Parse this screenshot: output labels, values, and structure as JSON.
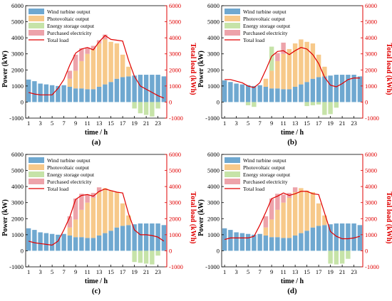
{
  "legend_labels": {
    "wind": "Wind turbine output",
    "pv": "Photovoltaic output",
    "storage": "Energy storage output",
    "purchased": "Purchased electricity",
    "load": "Total load"
  },
  "colors": {
    "wind": "#6fa8d0",
    "pv": "#f7c98a",
    "storage": "#c6e3a8",
    "purchased": "#eda3aa",
    "load": "#e00000",
    "axis_right": "#e00000",
    "axis_left": "#000000"
  },
  "chart_data": [
    {
      "type": "bar",
      "panel": "(a)",
      "xlabel": "time / h",
      "ylabel_left": "Power (kW)",
      "ylabel_right": "Total load (kWh)",
      "ylim_left": [
        -1000,
        6000
      ],
      "ylim_right": [
        -1000,
        6000
      ],
      "x_ticks": [
        1,
        3,
        5,
        7,
        9,
        11,
        13,
        15,
        17,
        19,
        21,
        23
      ],
      "left_ticks": [
        -1000,
        0,
        1000,
        2000,
        3000,
        4000,
        5000,
        6000
      ],
      "right_ticks": [
        -1000,
        0,
        1000,
        2000,
        3000,
        4000,
        5000,
        6000
      ],
      "x": [
        1,
        2,
        3,
        4,
        5,
        6,
        7,
        8,
        9,
        10,
        11,
        12,
        13,
        14,
        15,
        16,
        17,
        18,
        19,
        20,
        21,
        22,
        23,
        24
      ],
      "series": [
        {
          "name": "Wind turbine output",
          "values": [
            1400,
            1300,
            1150,
            1100,
            1050,
            1000,
            1050,
            950,
            850,
            850,
            800,
            800,
            950,
            1100,
            1250,
            1450,
            1550,
            1600,
            1650,
            1700,
            1700,
            1700,
            1700,
            1600
          ]
        },
        {
          "name": "Photovoltaic output",
          "values": [
            0,
            0,
            0,
            0,
            0,
            0,
            0,
            500,
            1100,
            1700,
            2200,
            2500,
            2700,
            2800,
            2500,
            2200,
            1400,
            600,
            0,
            0,
            0,
            0,
            0,
            0
          ]
        },
        {
          "name": "Energy storage output",
          "values": [
            0,
            0,
            0,
            0,
            0,
            0,
            0,
            0,
            0,
            0,
            0,
            0,
            0,
            0,
            0,
            0,
            0,
            0,
            -400,
            -700,
            -800,
            -900,
            -400,
            0
          ]
        },
        {
          "name": "Purchased electricity",
          "values": [
            0,
            0,
            0,
            0,
            0,
            0,
            0,
            500,
            1000,
            800,
            400,
            200,
            200,
            300,
            0,
            0,
            0,
            0,
            0,
            0,
            0,
            0,
            0,
            0
          ]
        },
        {
          "name": "Total load",
          "values": [
            600,
            500,
            450,
            450,
            450,
            850,
            1400,
            2300,
            3050,
            3300,
            3400,
            3250,
            3750,
            4150,
            3900,
            3850,
            3800,
            2600,
            1600,
            1000,
            800,
            600,
            400,
            250
          ]
        }
      ]
    },
    {
      "type": "bar",
      "panel": "(b)",
      "xlabel": "time / h",
      "ylabel_left": "Power (kW)",
      "ylabel_right": "Total load (kWh)",
      "ylim_left": [
        -1000,
        6000
      ],
      "ylim_right": [
        -1000,
        6000
      ],
      "x_ticks": [
        1,
        3,
        5,
        7,
        9,
        11,
        13,
        15,
        17,
        19,
        21,
        23
      ],
      "left_ticks": [
        -1000,
        0,
        1000,
        2000,
        3000,
        4000,
        5000,
        6000
      ],
      "right_ticks": [
        -1000,
        0,
        1000,
        2000,
        3000,
        4000,
        5000,
        6000
      ],
      "x": [
        1,
        2,
        3,
        4,
        5,
        6,
        7,
        8,
        9,
        10,
        11,
        12,
        13,
        14,
        15,
        16,
        17,
        18,
        19,
        20,
        21,
        22,
        23,
        24
      ],
      "series": [
        {
          "name": "Wind turbine output",
          "values": [
            1350,
            1250,
            1150,
            1100,
            1050,
            1000,
            1050,
            950,
            850,
            850,
            800,
            800,
            950,
            1100,
            1250,
            1450,
            1550,
            1600,
            1650,
            1700,
            1700,
            1700,
            1700,
            1600
          ]
        },
        {
          "name": "Photovoltaic output",
          "values": [
            0,
            0,
            0,
            0,
            0,
            0,
            0,
            500,
            1100,
            1700,
            2200,
            2500,
            2700,
            2800,
            2500,
            2200,
            1400,
            600,
            0,
            0,
            0,
            0,
            0,
            0
          ]
        },
        {
          "name": "Energy storage output",
          "values": [
            0,
            0,
            0,
            0,
            -200,
            -300,
            0,
            0,
            1500,
            0,
            0,
            0,
            0,
            0,
            -250,
            -200,
            -150,
            -800,
            -750,
            -350,
            0,
            0,
            0,
            0
          ]
        },
        {
          "name": "Purchased electricity",
          "values": [
            0,
            0,
            0,
            0,
            0,
            0,
            0,
            0,
            0,
            500,
            700,
            0,
            0,
            0,
            0,
            0,
            0,
            0,
            0,
            0,
            0,
            0,
            0,
            0
          ]
        },
        {
          "name": "Total load",
          "values": [
            1400,
            1400,
            1300,
            1200,
            1000,
            900,
            1200,
            2000,
            2850,
            3150,
            3200,
            2950,
            3200,
            3400,
            3300,
            2950,
            2400,
            1550,
            1050,
            950,
            1150,
            1400,
            1500,
            1500
          ]
        }
      ]
    },
    {
      "type": "bar",
      "panel": "(c)",
      "xlabel": "time / h",
      "ylabel_left": "Power (kW)",
      "ylabel_right": "Total load (kWh)",
      "ylim_left": [
        -1000,
        6000
      ],
      "ylim_right": [
        -1000,
        6000
      ],
      "x_ticks": [
        1,
        3,
        5,
        7,
        9,
        11,
        13,
        15,
        17,
        19,
        21,
        23
      ],
      "left_ticks": [
        -1000,
        0,
        1000,
        2000,
        3000,
        4000,
        5000,
        6000
      ],
      "right_ticks": [
        -1000,
        0,
        1000,
        2000,
        3000,
        4000,
        5000,
        6000
      ],
      "x": [
        1,
        2,
        3,
        4,
        5,
        6,
        7,
        8,
        9,
        10,
        11,
        12,
        13,
        14,
        15,
        16,
        17,
        18,
        19,
        20,
        21,
        22,
        23,
        24
      ],
      "series": [
        {
          "name": "Wind turbine output",
          "values": [
            1400,
            1300,
            1150,
            1100,
            1050,
            1000,
            1050,
            950,
            850,
            850,
            800,
            800,
            950,
            1100,
            1250,
            1450,
            1550,
            1600,
            1650,
            1700,
            1700,
            1700,
            1700,
            1600
          ]
        },
        {
          "name": "Photovoltaic output",
          "values": [
            0,
            0,
            0,
            0,
            0,
            0,
            0,
            500,
            1100,
            1700,
            2200,
            2500,
            2700,
            2800,
            2500,
            2200,
            1400,
            600,
            0,
            0,
            0,
            0,
            0,
            0
          ]
        },
        {
          "name": "Energy storage output",
          "values": [
            0,
            0,
            0,
            0,
            0,
            0,
            0,
            0,
            0,
            0,
            0,
            0,
            0,
            0,
            0,
            0,
            0,
            0,
            -700,
            -750,
            -800,
            -850,
            -300,
            0
          ]
        },
        {
          "name": "Purchased electricity",
          "values": [
            0,
            0,
            0,
            0,
            0,
            0,
            0,
            700,
            1300,
            1000,
            500,
            300,
            300,
            0,
            0,
            0,
            0,
            0,
            0,
            0,
            0,
            0,
            0,
            0
          ]
        },
        {
          "name": "Total load",
          "values": [
            600,
            500,
            450,
            400,
            350,
            600,
            1300,
            2100,
            3200,
            3450,
            3500,
            3400,
            3700,
            3850,
            3750,
            3650,
            3600,
            2300,
            1300,
            1000,
            1000,
            950,
            850,
            600
          ]
        }
      ]
    },
    {
      "type": "bar",
      "panel": "(d)",
      "xlabel": "time / h",
      "ylabel_left": "Power (kW)",
      "ylabel_right": "Total load (kWh)",
      "ylim_left": [
        -1000,
        6000
      ],
      "ylim_right": [
        -1000,
        6000
      ],
      "x_ticks": [
        1,
        3,
        5,
        7,
        9,
        11,
        13,
        15,
        17,
        19,
        21,
        23
      ],
      "left_ticks": [
        -1000,
        0,
        1000,
        2000,
        3000,
        4000,
        5000,
        6000
      ],
      "right_ticks": [
        -1000,
        0,
        1000,
        2000,
        3000,
        4000,
        5000,
        6000
      ],
      "x": [
        1,
        2,
        3,
        4,
        5,
        6,
        7,
        8,
        9,
        10,
        11,
        12,
        13,
        14,
        15,
        16,
        17,
        18,
        19,
        20,
        21,
        22,
        23,
        24
      ],
      "series": [
        {
          "name": "Wind turbine output",
          "values": [
            1400,
            1300,
            1150,
            1100,
            1050,
            1000,
            1050,
            950,
            850,
            850,
            800,
            800,
            950,
            1100,
            1250,
            1450,
            1550,
            1600,
            1650,
            1700,
            1700,
            1700,
            1700,
            1600
          ]
        },
        {
          "name": "Photovoltaic output",
          "values": [
            0,
            0,
            0,
            0,
            0,
            0,
            0,
            500,
            1100,
            1700,
            2200,
            2500,
            2700,
            2800,
            2500,
            2200,
            1400,
            600,
            0,
            0,
            0,
            0,
            0,
            0
          ]
        },
        {
          "name": "Energy storage output",
          "values": [
            0,
            0,
            0,
            0,
            0,
            0,
            0,
            0,
            0,
            0,
            0,
            0,
            0,
            0,
            0,
            0,
            0,
            0,
            -800,
            -850,
            -800,
            -500,
            0,
            0
          ]
        },
        {
          "name": "Purchased electricity",
          "values": [
            0,
            0,
            0,
            0,
            0,
            0,
            0,
            700,
            1300,
            1000,
            500,
            300,
            300,
            0,
            0,
            0,
            0,
            0,
            0,
            0,
            0,
            0,
            0,
            0
          ]
        },
        {
          "name": "Total load",
          "values": [
            700,
            800,
            800,
            800,
            800,
            900,
            1600,
            2400,
            3250,
            3400,
            3600,
            3450,
            3550,
            3700,
            3700,
            3550,
            3500,
            2350,
            1200,
            900,
            750,
            750,
            800,
            900
          ]
        }
      ]
    }
  ]
}
